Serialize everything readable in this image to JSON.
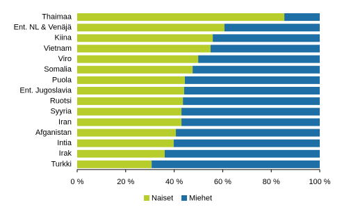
{
  "chart_data": {
    "type": "stacked-bar-horizontal",
    "categories": [
      "Thaimaa",
      "Ent. NL & Venäjä",
      "Kiina",
      "Vietnam",
      "Viro",
      "Somalia",
      "Puola",
      "Ent. Jugoslavia",
      "Ruotsi",
      "Syyria",
      "Iran",
      "Afganistan",
      "Intia",
      "Irak",
      "Turkki"
    ],
    "series": [
      {
        "name": "Naiset",
        "color": "#b7cd2b",
        "values": [
          85.4,
          60.7,
          55.9,
          55.0,
          49.9,
          47.6,
          44.4,
          44.1,
          43.6,
          43.0,
          43.0,
          40.7,
          39.8,
          36.1,
          30.7
        ]
      },
      {
        "name": "Miehet",
        "color": "#1f6fa7",
        "values": [
          14.6,
          39.3,
          44.1,
          45.0,
          50.1,
          52.4,
          55.6,
          55.9,
          56.4,
          57.0,
          57.0,
          59.3,
          60.2,
          63.9,
          69.3
        ]
      }
    ],
    "xlim": [
      0,
      100
    ],
    "xticks": [
      {
        "value": 0,
        "label": "0 %"
      },
      {
        "value": 20,
        "label": "20 %"
      },
      {
        "value": 40,
        "label": "40 %"
      },
      {
        "value": 60,
        "label": "60 %"
      },
      {
        "value": 80,
        "label": "80 %"
      },
      {
        "value": 100,
        "label": "100 %"
      }
    ],
    "grid": false,
    "legend": "bottom"
  }
}
